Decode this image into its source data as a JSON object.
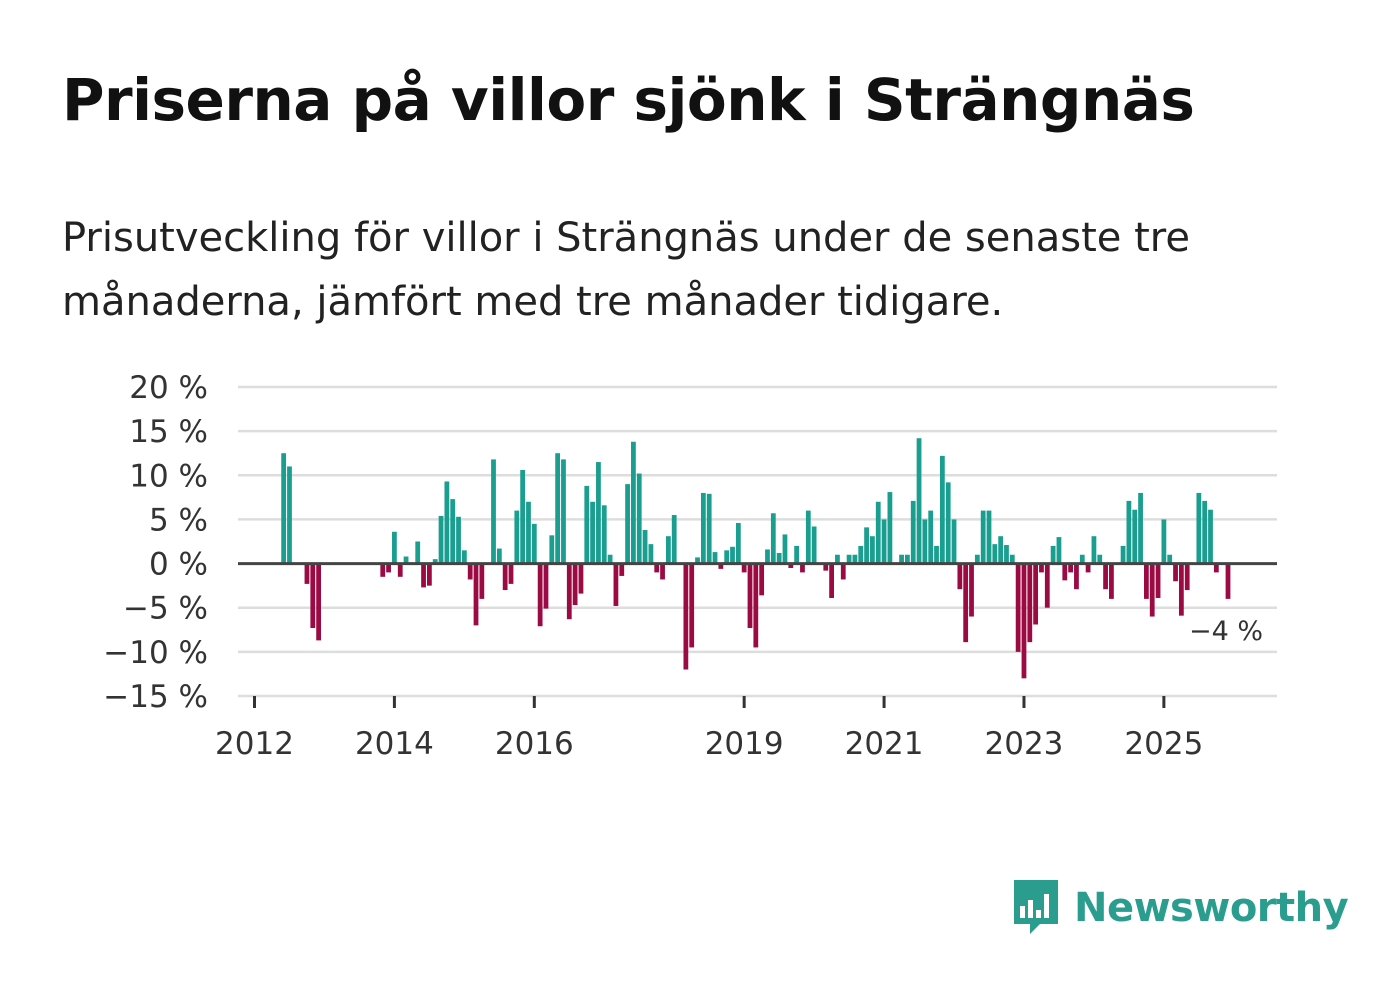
{
  "title": "Priserna på villor sjönk i Strängnäs",
  "subtitle": "Prisutveckling för villor i Strängnäs under de senaste tre månaderna, jämfört med tre månader tidigare.",
  "brand": "Newsworthy",
  "colors": {
    "positive": "#1a9e8f",
    "negative": "#9b0a43",
    "grid": "#dddddd",
    "zero": "#444444",
    "brand": "#2a9d8f"
  },
  "chart_data": {
    "type": "bar",
    "title": "Priserna på villor sjönk i Strängnäs",
    "xlabel": "",
    "ylabel": "",
    "ylim": [
      -15,
      20
    ],
    "yticks": [
      {
        "value": 20,
        "label": "20 %"
      },
      {
        "value": 15,
        "label": "15 %"
      },
      {
        "value": 10,
        "label": "10 %"
      },
      {
        "value": 5,
        "label": "5 %"
      },
      {
        "value": 0,
        "label": "0 %"
      },
      {
        "value": -5,
        "label": "−5 %"
      },
      {
        "value": -10,
        "label": "−10 %"
      },
      {
        "value": -15,
        "label": "−15 %"
      }
    ],
    "xticks": [
      {
        "year": 2012,
        "label": "2012"
      },
      {
        "year": 2014,
        "label": "2014"
      },
      {
        "year": 2016,
        "label": "2016"
      },
      {
        "year": 2019,
        "label": "2019"
      },
      {
        "year": 2021,
        "label": "2021"
      },
      {
        "year": 2023,
        "label": "2023"
      },
      {
        "year": 2025,
        "label": "2025"
      }
    ],
    "start": "2012-01",
    "values": [
      null,
      null,
      null,
      null,
      null,
      12.5,
      11,
      null,
      null,
      -2.3,
      -7.3,
      -8.7,
      null,
      null,
      null,
      null,
      null,
      null,
      null,
      null,
      null,
      null,
      -1.5,
      -1,
      3.6,
      -1.5,
      0.8,
      null,
      2.5,
      -2.7,
      -2.5,
      0.5,
      5.4,
      9.3,
      7.3,
      5.3,
      1.5,
      -1.8,
      -7,
      -4,
      null,
      11.8,
      1.7,
      -3,
      -2.3,
      6,
      10.6,
      7,
      4.5,
      -7.1,
      -5.1,
      3.2,
      12.5,
      11.8,
      -6.3,
      -4.7,
      -3.4,
      8.8,
      7,
      11.5,
      6.6,
      1,
      -4.8,
      -1.4,
      9,
      13.8,
      10.2,
      3.8,
      2.2,
      -1,
      -1.8,
      3.1,
      5.5,
      null,
      -12,
      -9.5,
      0.7,
      8,
      7.9,
      1.3,
      -0.6,
      1.5,
      1.9,
      4.6,
      -1,
      -7.3,
      -9.5,
      -3.6,
      1.6,
      5.7,
      1.2,
      3.3,
      -0.5,
      2,
      -1,
      6,
      4.2,
      null,
      -0.8,
      -3.9,
      1,
      -1.8,
      1,
      1,
      2,
      4.1,
      3.1,
      7,
      5,
      8.1,
      null,
      1,
      1,
      7.1,
      14.2,
      5,
      6,
      2,
      12.2,
      9.2,
      5,
      -2.9,
      -8.9,
      -6,
      1,
      6,
      6,
      2.2,
      3.1,
      2.1,
      1,
      -10,
      -13,
      -8.9,
      -6.9,
      -1,
      -5,
      2,
      3,
      -1.9,
      -1,
      -2.9,
      1,
      -1,
      3.1,
      1,
      -2.9,
      -4,
      null,
      2,
      7.1,
      6.1,
      8,
      -4,
      -6,
      -3.9,
      5,
      1,
      -2,
      -5.9,
      -3,
      null,
      8,
      7.1,
      6.1,
      -1,
      null,
      -4
    ],
    "last_value_label": "−4 %"
  }
}
